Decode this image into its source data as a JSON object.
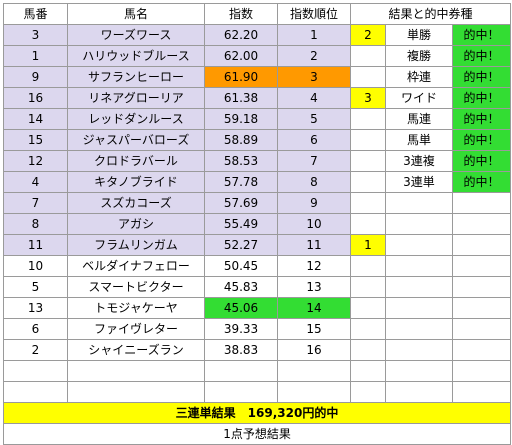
{
  "headers": {
    "col_number": "馬番",
    "col_name": "馬名",
    "col_index": "指数",
    "col_rank": "指数順位",
    "col_results": "結果と的中券種"
  },
  "rows": [
    {
      "num": "3",
      "name": "ワーズワース",
      "index": "62.20",
      "rank": "1",
      "finish": "2",
      "bet": "単勝",
      "hit": "的中！"
    },
    {
      "num": "1",
      "name": "ハリウッドブルース",
      "index": "62.00",
      "rank": "2",
      "finish": "",
      "bet": "複勝",
      "hit": "的中！"
    },
    {
      "num": "9",
      "name": "サフランヒーロー",
      "index": "61.90",
      "rank": "3",
      "finish": "",
      "bet": "枠連",
      "hit": "的中！"
    },
    {
      "num": "16",
      "name": "リネアグローリア",
      "index": "61.38",
      "rank": "4",
      "finish": "3",
      "bet": "ワイド",
      "hit": "的中！"
    },
    {
      "num": "14",
      "name": "レッドダンルース",
      "index": "59.18",
      "rank": "5",
      "finish": "",
      "bet": "馬連",
      "hit": "的中！"
    },
    {
      "num": "15",
      "name": "ジャスパーバローズ",
      "index": "58.89",
      "rank": "6",
      "finish": "",
      "bet": "馬単",
      "hit": "的中！"
    },
    {
      "num": "12",
      "name": "クロドラバール",
      "index": "58.53",
      "rank": "7",
      "finish": "",
      "bet": "3連複",
      "hit": "的中！"
    },
    {
      "num": "4",
      "name": "キタノブライド",
      "index": "57.78",
      "rank": "8",
      "finish": "",
      "bet": "3連単",
      "hit": "的中！"
    },
    {
      "num": "7",
      "name": "スズカコーズ",
      "index": "57.69",
      "rank": "9",
      "finish": "",
      "bet": "",
      "hit": ""
    },
    {
      "num": "8",
      "name": "アガシ",
      "index": "55.49",
      "rank": "10",
      "finish": "",
      "bet": "",
      "hit": ""
    },
    {
      "num": "11",
      "name": "フラムリンガム",
      "index": "52.27",
      "rank": "11",
      "finish": "1",
      "bet": "",
      "hit": ""
    },
    {
      "num": "10",
      "name": "ベルダイナフェロー",
      "index": "50.45",
      "rank": "12",
      "finish": "",
      "bet": "",
      "hit": ""
    },
    {
      "num": "5",
      "name": "スマートビクター",
      "index": "45.83",
      "rank": "13",
      "finish": "",
      "bet": "",
      "hit": ""
    },
    {
      "num": "13",
      "name": "トモジャケーヤ",
      "index": "45.06",
      "rank": "14",
      "finish": "",
      "bet": "",
      "hit": ""
    },
    {
      "num": "6",
      "name": "ファイヴレター",
      "index": "39.33",
      "rank": "15",
      "finish": "",
      "bet": "",
      "hit": ""
    },
    {
      "num": "2",
      "name": "シャイニーズラン",
      "index": "38.83",
      "rank": "16",
      "finish": "",
      "bet": "",
      "hit": ""
    }
  ],
  "summary": {
    "result_text": "三連単結果　169,320円的中",
    "caption": "1点予想結果"
  },
  "colors": {
    "lavender": "#dcd7ee",
    "orange": "#ff9900",
    "green": "#33dd33",
    "yellow": "#ffff00"
  }
}
